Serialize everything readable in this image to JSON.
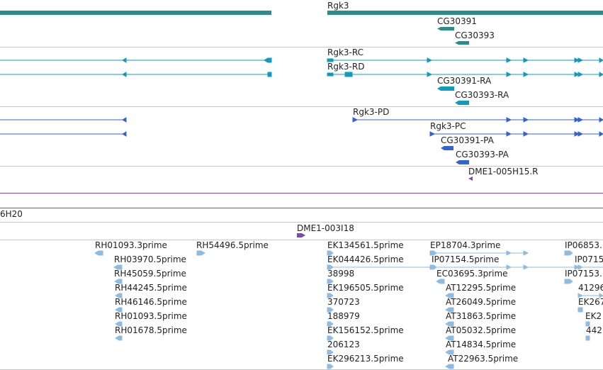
{
  "colors": {
    "gene": "#2e8b8b",
    "transcript": "#0f9bbb",
    "protein": "#2f63d6",
    "probe": "#7b4bb3",
    "est": "#8fbbe2",
    "divider": "#c8c8c8"
  },
  "genes": {
    "rgk3": "Rgk3",
    "cg30391": "CG30391",
    "cg30393": "CG30393"
  },
  "transcripts": {
    "rgk3_rc": "Rgk3-RC",
    "rgk3_rd": "Rgk3-RD",
    "cg30391_ra": "CG30391-RA",
    "cg30393_ra": "CG30393-RA"
  },
  "proteins": {
    "rgk3_pd": "Rgk3-PD",
    "rgk3_pc": "Rgk3-PC",
    "cg30391_pa": "CG30391-PA",
    "cg30393_pa": "CG30393-PA"
  },
  "probes": {
    "dme1_005h15": "DME1-005H15.R",
    "h20": "6H20",
    "dme1_003i18": "DME1-003I18"
  },
  "ests": {
    "col1": [
      "RH01093.3prime"
    ],
    "col2": [
      "RH03970.5prime",
      "RH45059.5prime",
      "RH44245.5prime",
      "RH46146.5prime",
      "RH01093.5prime",
      "RH01678.5prime"
    ],
    "col3": [
      "RH54496.5prime"
    ],
    "col4": [
      "EK134561.5prime",
      "EK044426.5prime",
      "38998",
      "EK196505.5prime",
      "370723",
      "188979",
      "EK156152.5prime",
      "206123",
      "EK296213.5prime"
    ],
    "col5": [
      "EP18704.3prime",
      "IP07154.5prime",
      "EC03695.3prime"
    ],
    "col6": [
      "AT12295.5prime",
      "AT26049.5prime",
      "AT31863.5prime",
      "AT05032.5prime",
      "AT14834.5prime",
      "AT22963.5prime"
    ],
    "col7": [
      "IP06853.",
      "IP0715",
      "IP07153."
    ],
    "col8": [
      "41296",
      "EK267",
      "EK2",
      "442"
    ]
  }
}
